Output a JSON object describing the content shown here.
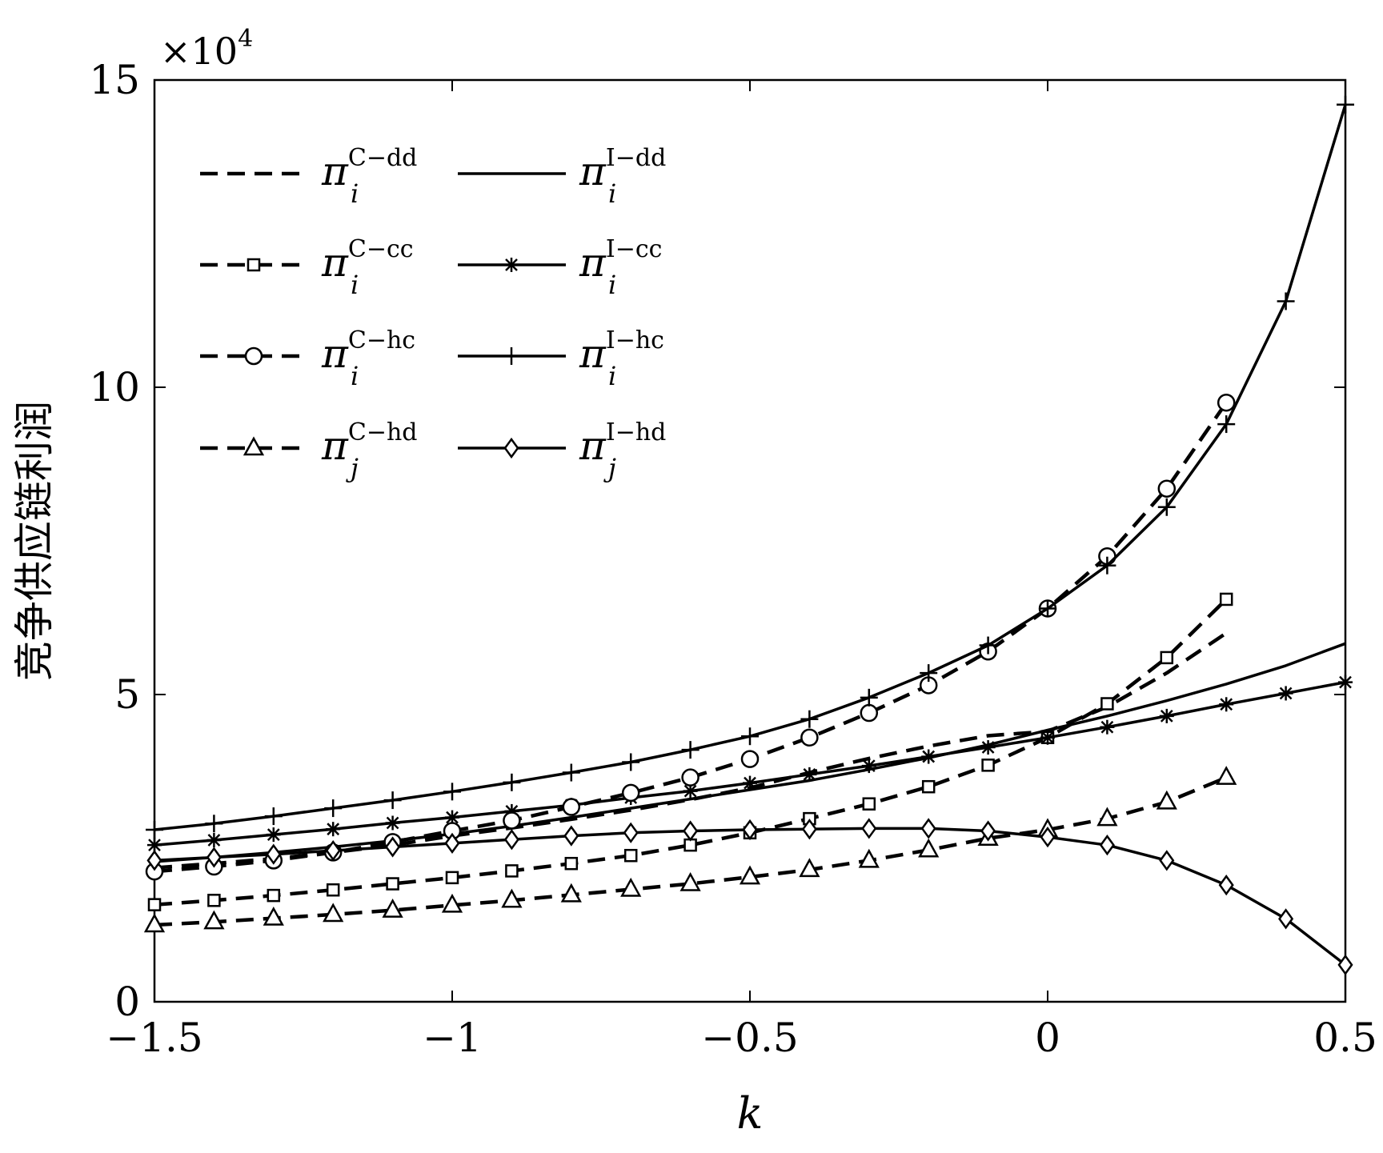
{
  "chart_data": {
    "type": "line",
    "xlabel": "k",
    "ylabel": "竞争供应链利润",
    "y_multiplier": "×10",
    "y_multiplier_exp": "4",
    "xlim": [
      -1.5,
      0.5
    ],
    "ylim": [
      0,
      15
    ],
    "x_ticks": [
      -1.5,
      -1,
      -0.5,
      0,
      0.5
    ],
    "x_tick_labels": [
      "−1.5",
      "−1",
      "−0.5",
      "0",
      "0.5"
    ],
    "y_ticks": [
      0,
      5,
      10,
      15
    ],
    "y_tick_labels": [
      "0",
      "5",
      "10",
      "15"
    ],
    "grid": false,
    "legend_position": "top-left",
    "series": [
      {
        "id": "C-dd",
        "base": "π",
        "sub": "i",
        "sup": "C−dd",
        "line": "dashed",
        "marker": "none",
        "x": [
          -1.5,
          -1.4,
          -1.3,
          -1.2,
          -1.1,
          -1.0,
          -0.9,
          -0.8,
          -0.7,
          -0.6,
          -0.5,
          -0.4,
          -0.3,
          -0.2,
          -0.1,
          0.0,
          0.1,
          0.2,
          0.3
        ],
        "y": [
          2.18,
          2.25,
          2.33,
          2.43,
          2.55,
          2.7,
          2.83,
          2.97,
          3.12,
          3.29,
          3.48,
          3.73,
          3.96,
          4.16,
          4.33,
          4.4,
          4.8,
          5.35,
          6.0
        ]
      },
      {
        "id": "I-dd",
        "base": "π",
        "sub": "i",
        "sup": "I−dd",
        "line": "solid",
        "marker": "none",
        "x": [
          -1.5,
          -1.4,
          -1.3,
          -1.2,
          -1.1,
          -1.0,
          -0.9,
          -0.8,
          -0.7,
          -0.6,
          -0.5,
          -0.4,
          -0.3,
          -0.2,
          -0.1,
          0.0,
          0.1,
          0.2,
          0.3,
          0.4,
          0.5
        ],
        "y": [
          2.28,
          2.35,
          2.43,
          2.52,
          2.62,
          2.73,
          2.86,
          3.0,
          3.15,
          3.3,
          3.45,
          3.6,
          3.78,
          3.97,
          4.18,
          4.42,
          4.65,
          4.9,
          5.17,
          5.47,
          5.83
        ]
      },
      {
        "id": "C-cc",
        "base": "π",
        "sub": "i",
        "sup": "C−cc",
        "line": "dashed",
        "marker": "square",
        "x": [
          -1.5,
          -1.4,
          -1.3,
          -1.2,
          -1.1,
          -1.0,
          -0.9,
          -0.8,
          -0.7,
          -0.6,
          -0.5,
          -0.4,
          -0.3,
          -0.2,
          -0.1,
          0.0,
          0.1,
          0.2,
          0.3
        ],
        "y": [
          1.58,
          1.65,
          1.73,
          1.82,
          1.92,
          2.02,
          2.13,
          2.25,
          2.38,
          2.55,
          2.75,
          2.98,
          3.22,
          3.5,
          3.85,
          4.3,
          4.85,
          5.6,
          6.55
        ]
      },
      {
        "id": "I-cc",
        "base": "π",
        "sub": "i",
        "sup": "I−cc",
        "line": "solid",
        "marker": "asterisk",
        "x": [
          -1.5,
          -1.4,
          -1.3,
          -1.2,
          -1.1,
          -1.0,
          -0.9,
          -0.8,
          -0.7,
          -0.6,
          -0.5,
          -0.4,
          -0.3,
          -0.2,
          -0.1,
          0.0,
          0.1,
          0.2,
          0.3,
          0.4,
          0.5
        ],
        "y": [
          2.55,
          2.63,
          2.72,
          2.81,
          2.91,
          3.0,
          3.1,
          3.2,
          3.32,
          3.43,
          3.56,
          3.7,
          3.84,
          3.99,
          4.14,
          4.3,
          4.47,
          4.65,
          4.84,
          5.02,
          5.2
        ]
      },
      {
        "id": "C-hc",
        "base": "π",
        "sub": "i",
        "sup": "C−hc",
        "line": "dashed",
        "marker": "circle",
        "x": [
          -1.5,
          -1.4,
          -1.3,
          -1.2,
          -1.1,
          -1.0,
          -0.9,
          -0.8,
          -0.7,
          -0.6,
          -0.5,
          -0.4,
          -0.3,
          -0.2,
          -0.1,
          0.0,
          0.1,
          0.2,
          0.3
        ],
        "y": [
          2.12,
          2.2,
          2.3,
          2.43,
          2.6,
          2.78,
          2.95,
          3.17,
          3.4,
          3.65,
          3.95,
          4.3,
          4.7,
          5.15,
          5.7,
          6.4,
          7.25,
          8.35,
          9.75
        ]
      },
      {
        "id": "I-hc",
        "base": "π",
        "sub": "i",
        "sup": "I−hc",
        "line": "solid",
        "marker": "plus",
        "x": [
          -1.5,
          -1.4,
          -1.3,
          -1.2,
          -1.1,
          -1.0,
          -0.9,
          -0.8,
          -0.7,
          -0.6,
          -0.5,
          -0.4,
          -0.3,
          -0.2,
          -0.1,
          0.0,
          0.1,
          0.2,
          0.3,
          0.4,
          0.5
        ],
        "y": [
          2.8,
          2.9,
          3.02,
          3.15,
          3.28,
          3.42,
          3.57,
          3.73,
          3.9,
          4.1,
          4.32,
          4.6,
          4.95,
          5.35,
          5.8,
          6.4,
          7.1,
          8.05,
          9.4,
          11.4,
          14.6
        ]
      },
      {
        "id": "C-hd",
        "base": "π",
        "sub": "j",
        "sup": "C−hd",
        "line": "dashed",
        "marker": "triangle",
        "x": [
          -1.5,
          -1.4,
          -1.3,
          -1.2,
          -1.1,
          -1.0,
          -0.9,
          -0.8,
          -0.7,
          -0.6,
          -0.5,
          -0.4,
          -0.3,
          -0.2,
          -0.1,
          0.0,
          0.1,
          0.2,
          0.3
        ],
        "y": [
          1.25,
          1.3,
          1.36,
          1.42,
          1.49,
          1.57,
          1.65,
          1.74,
          1.83,
          1.92,
          2.03,
          2.15,
          2.3,
          2.47,
          2.66,
          2.8,
          2.98,
          3.25,
          3.65
        ]
      },
      {
        "id": "I-hd",
        "base": "π",
        "sub": "j",
        "sup": "I−hd",
        "line": "solid",
        "marker": "diamond",
        "x": [
          -1.5,
          -1.4,
          -1.3,
          -1.2,
          -1.1,
          -1.0,
          -0.9,
          -0.8,
          -0.7,
          -0.6,
          -0.5,
          -0.4,
          -0.3,
          -0.2,
          -0.1,
          0.0,
          0.1,
          0.2,
          0.3,
          0.4,
          0.5
        ],
        "y": [
          2.3,
          2.35,
          2.4,
          2.46,
          2.52,
          2.58,
          2.64,
          2.7,
          2.75,
          2.78,
          2.8,
          2.81,
          2.82,
          2.82,
          2.78,
          2.68,
          2.55,
          2.3,
          1.9,
          1.35,
          0.6
        ]
      }
    ]
  }
}
